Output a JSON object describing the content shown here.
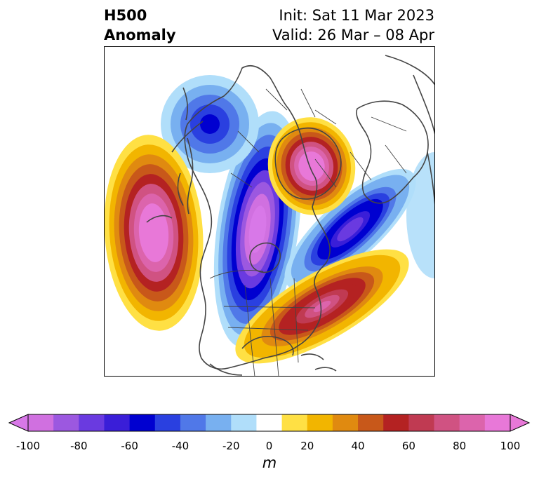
{
  "header": {
    "title_line1": "H500",
    "title_line2": "Anomaly",
    "init_label": "Init: Sat 11 Mar 2023",
    "valid_label": "Valid: 26 Mar – 08 Apr"
  },
  "map": {
    "projection": "polar stereographic",
    "field": "500 hPa geopotential height anomaly",
    "features": [
      {
        "name": "ridge-west-pacific",
        "sign": "positive",
        "peak": 100
      },
      {
        "name": "ridge-greenland-arctic",
        "sign": "positive",
        "peak": 100
      },
      {
        "name": "ridge-eastern-us-atlantic",
        "sign": "positive",
        "peak": 80
      },
      {
        "name": "trough-western-canada",
        "sign": "negative",
        "peak": -100
      },
      {
        "name": "trough-alaska-north",
        "sign": "negative",
        "peak": -60
      },
      {
        "name": "trough-north-atlantic",
        "sign": "negative",
        "peak": -80
      }
    ]
  },
  "colorbar": {
    "unit": "m",
    "levels": [
      -100,
      -90,
      -80,
      -70,
      -60,
      -50,
      -40,
      -30,
      -20,
      -10,
      10,
      20,
      30,
      40,
      50,
      60,
      70,
      80,
      90,
      100
    ],
    "colors": [
      "#d070e0",
      "#9c58e0",
      "#6a3ae0",
      "#3a1ed8",
      "#0000d0",
      "#2a40e0",
      "#5078e8",
      "#78b0f0",
      "#b0defa",
      "#ffffff",
      "#ffe044",
      "#f2b500",
      "#e08a10",
      "#c8581a",
      "#b42222",
      "#c03a52",
      "#d05282",
      "#dc64ac",
      "#e878d8"
    ],
    "under_color": "#d878e8",
    "over_color": "#e878d8",
    "tick_labels": [
      "-100",
      "-80",
      "-60",
      "-40",
      "-20",
      "0",
      "20",
      "40",
      "60",
      "80",
      "100"
    ]
  }
}
